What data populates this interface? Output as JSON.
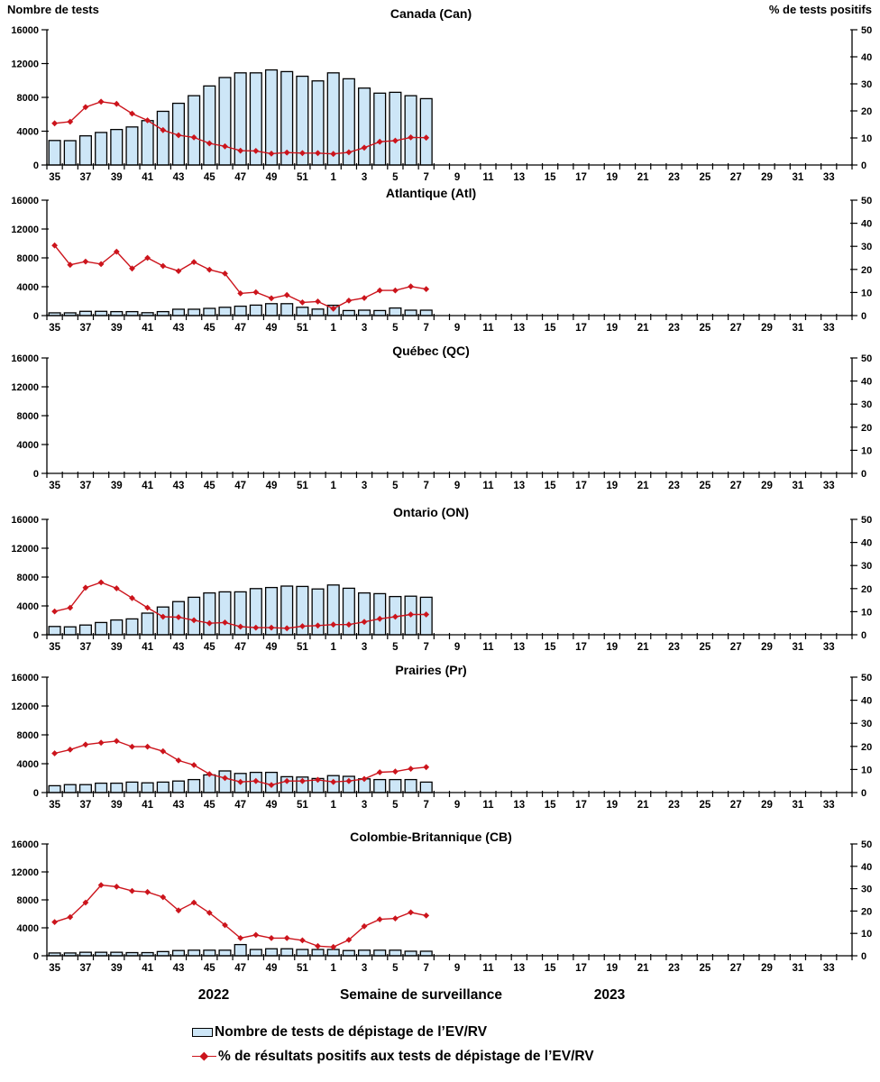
{
  "colors": {
    "bar_fill": "#cde6f7",
    "bar_border": "#000000",
    "line": "#cc141c",
    "axis": "#000000",
    "text": "#000000",
    "background": "#ffffff"
  },
  "legend": {
    "items": [
      {
        "marker": "bar-swatch",
        "label": "Nombre de tests de dépistage de l’EV/RV"
      },
      {
        "marker": "line-diamond",
        "label": "% de résultats positifs aux tests de dépistage de l’EV/RV"
      }
    ]
  },
  "chart_data": {
    "type": "bar+line small-multiples",
    "xlabel": "Semaine de surveillance",
    "left_ylabel": "Nombre de tests",
    "right_ylabel": "% de tests positifs",
    "years": {
      "left": "2022",
      "right": "2023"
    },
    "left_ylim": [
      0,
      16000
    ],
    "right_ylim": [
      0,
      50
    ],
    "left_ticks": [
      0,
      4000,
      8000,
      12000,
      16000
    ],
    "right_ticks": [
      0,
      10,
      20,
      30,
      40,
      50
    ],
    "grid": false,
    "x_slots": [
      "35",
      "36",
      "37",
      "38",
      "39",
      "40",
      "41",
      "42",
      "43",
      "44",
      "45",
      "46",
      "47",
      "48",
      "49",
      "50",
      "51",
      "52",
      "1",
      "2",
      "3",
      "4",
      "5",
      "6",
      "7",
      "8",
      "9",
      "10",
      "11",
      "12",
      "13",
      "14",
      "15",
      "16",
      "17",
      "18",
      "19",
      "20",
      "21",
      "22",
      "23",
      "24",
      "25",
      "26",
      "27",
      "28",
      "29",
      "30",
      "31",
      "32",
      "33",
      "34"
    ],
    "x_tick_labels": [
      "35",
      "37",
      "39",
      "41",
      "43",
      "45",
      "47",
      "49",
      "51",
      "1",
      "3",
      "5",
      "7",
      "9",
      "11",
      "13",
      "15",
      "17",
      "19",
      "21",
      "23",
      "25",
      "27",
      "29",
      "31",
      "33"
    ],
    "data_weeks": [
      "35",
      "36",
      "37",
      "38",
      "39",
      "40",
      "41",
      "42",
      "43",
      "44",
      "45",
      "46",
      "47",
      "48",
      "49",
      "50",
      "51",
      "52",
      "1",
      "2",
      "3",
      "4",
      "5",
      "6",
      "7"
    ],
    "panels": [
      {
        "title": "Canada (Can)",
        "tests": [
          2900,
          2880,
          3450,
          3850,
          4200,
          4500,
          5250,
          6350,
          7300,
          8200,
          9350,
          10350,
          10900,
          10900,
          11250,
          11050,
          10500,
          9950,
          10900,
          10200,
          9100,
          8500,
          8600,
          8200,
          7850
        ],
        "pct_positive": [
          15.4,
          16.0,
          21.4,
          23.4,
          22.6,
          19.0,
          16.5,
          12.9,
          11.0,
          10.2,
          8.0,
          6.9,
          5.3,
          5.2,
          4.2,
          4.6,
          4.4,
          4.4,
          4.1,
          4.7,
          6.4,
          8.6,
          9.0,
          10.2,
          10.1
        ]
      },
      {
        "title": "Atlantique (Atl)",
        "tests": [
          380,
          380,
          590,
          590,
          550,
          550,
          400,
          550,
          880,
          880,
          1000,
          1150,
          1300,
          1450,
          1650,
          1650,
          1150,
          900,
          1430,
          700,
          750,
          700,
          1050,
          750,
          750
        ],
        "pct_positive": [
          30.4,
          22.0,
          23.4,
          22.3,
          27.7,
          20.4,
          25.0,
          21.5,
          19.3,
          23.2,
          19.9,
          18.2,
          9.6,
          10.1,
          7.5,
          8.9,
          5.7,
          6.1,
          3.0,
          6.5,
          7.6,
          10.9,
          10.9,
          12.6,
          11.5
        ]
      },
      {
        "title": "Québec (QC)",
        "tests": [],
        "pct_positive": []
      },
      {
        "title": "Ontario (ON)",
        "tests": [
          1150,
          1100,
          1350,
          1700,
          2050,
          2200,
          3000,
          3850,
          4600,
          5200,
          5800,
          5950,
          5950,
          6400,
          6550,
          6750,
          6700,
          6350,
          6900,
          6450,
          5800,
          5700,
          5300,
          5350,
          5200
        ],
        "pct_positive": [
          10.1,
          11.7,
          20.4,
          22.7,
          20.1,
          15.9,
          11.7,
          7.8,
          7.6,
          6.3,
          5.0,
          5.3,
          3.5,
          3.1,
          3.1,
          2.8,
          3.7,
          4.0,
          4.4,
          4.4,
          5.6,
          6.9,
          7.8,
          8.8,
          8.8
        ]
      },
      {
        "title": "Prairies (Pr)",
        "tests": [
          950,
          1100,
          1100,
          1300,
          1300,
          1450,
          1350,
          1450,
          1600,
          1800,
          2450,
          3000,
          2650,
          2800,
          2800,
          2200,
          2150,
          1950,
          2350,
          2250,
          1900,
          1800,
          1800,
          1800,
          1450
        ],
        "pct_positive": [
          17.0,
          18.6,
          20.8,
          21.6,
          22.3,
          19.9,
          19.9,
          17.9,
          13.9,
          11.9,
          8.0,
          6.3,
          4.6,
          5.0,
          3.3,
          5.0,
          5.0,
          5.5,
          4.6,
          5.0,
          5.9,
          8.8,
          9.1,
          10.3,
          11.0
        ]
      },
      {
        "title": "Colombie-Britannique (CB)",
        "tests": [
          400,
          400,
          500,
          500,
          500,
          450,
          450,
          600,
          750,
          800,
          800,
          800,
          1600,
          900,
          1000,
          1000,
          900,
          900,
          900,
          750,
          800,
          800,
          800,
          650,
          650
        ],
        "pct_positive": [
          15.1,
          17.3,
          23.8,
          31.6,
          30.9,
          29.0,
          28.5,
          26.2,
          20.3,
          23.8,
          19.2,
          13.7,
          7.9,
          9.3,
          7.9,
          7.9,
          6.9,
          4.3,
          3.9,
          7.1,
          13.2,
          16.3,
          16.7,
          19.4,
          18.0
        ]
      }
    ]
  }
}
